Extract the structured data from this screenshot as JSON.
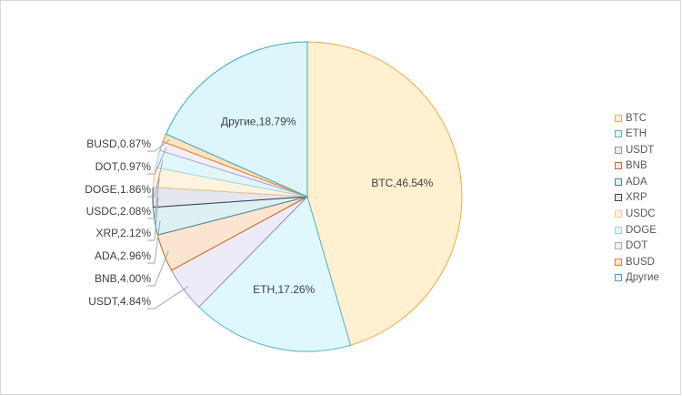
{
  "chart_data": {
    "type": "pie",
    "title": "",
    "categories": [
      "BTC",
      "ETH",
      "USDT",
      "BNB",
      "ADA",
      "XRP",
      "USDC",
      "DOGE",
      "DOT",
      "BUSD",
      "Другие"
    ],
    "values": [
      46.54,
      17.26,
      4.84,
      4.0,
      2.96,
      2.12,
      2.08,
      1.86,
      0.97,
      0.87,
      18.79
    ],
    "data_labels": [
      "BTC,46.54%",
      "ETH,17.26%",
      "USDT,4.84%",
      "BNB,4.00%",
      "ADA,2.96%",
      "XRP,2.12%",
      "USDC,2.08%",
      "DOGE,1.86%",
      "DOT,0.97%",
      "BUSD,0.87%",
      "Другие,18.79%"
    ],
    "fill_colors": [
      "#fff0cf",
      "#def8fd",
      "#efeaf7",
      "#fbe4d0",
      "#dff0f2",
      "#e4e7ee",
      "#fff3e0",
      "#e2f6fa",
      "#f2eff8",
      "#fde3c4",
      "#dcf6fc"
    ],
    "stroke_colors": [
      "#f0a848",
      "#56b3c8",
      "#9e8cc1",
      "#c96a1b",
      "#3a8c99",
      "#3c3f5c",
      "#f6c98f",
      "#96d8e8",
      "#b0a4cc",
      "#e3871e",
      "#3fa9bc"
    ],
    "legend_position": "right",
    "start_angle_deg": 0,
    "direction": "clockwise"
  }
}
